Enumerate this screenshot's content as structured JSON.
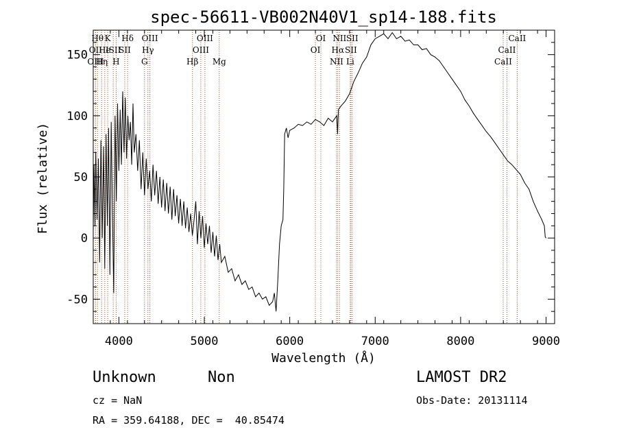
{
  "chart_data": {
    "type": "line",
    "title": "spec-56611-VB002N40V1_sp14-188.fits",
    "xlabel": "Wavelength (Å)",
    "ylabel": "Flux (relative)",
    "xlim": [
      3700,
      9100
    ],
    "ylim": [
      -70,
      170
    ],
    "x_ticks": [
      4000,
      5000,
      6000,
      7000,
      8000,
      9000
    ],
    "y_ticks": [
      -50,
      0,
      50,
      100,
      150
    ],
    "grid": false,
    "line_color": "#000000",
    "marker_color": "#a0522d",
    "series": [
      {
        "values": [
          [
            3700,
            5
          ],
          [
            3710,
            60
          ],
          [
            3720,
            10
          ],
          [
            3730,
            70
          ],
          [
            3745,
            15
          ],
          [
            3760,
            65
          ],
          [
            3775,
            -20
          ],
          [
            3790,
            80
          ],
          [
            3805,
            0
          ],
          [
            3820,
            75
          ],
          [
            3835,
            -25
          ],
          [
            3850,
            85
          ],
          [
            3865,
            10
          ],
          [
            3880,
            90
          ],
          [
            3895,
            -30
          ],
          [
            3910,
            95
          ],
          [
            3925,
            20
          ],
          [
            3940,
            -45
          ],
          [
            3955,
            100
          ],
          [
            3970,
            30
          ],
          [
            3985,
            110
          ],
          [
            4000,
            55
          ],
          [
            4015,
            105
          ],
          [
            4030,
            60
          ],
          [
            4045,
            120
          ],
          [
            4060,
            70
          ],
          [
            4075,
            115
          ],
          [
            4090,
            65
          ],
          [
            4105,
            100
          ],
          [
            4120,
            80
          ],
          [
            4135,
            95
          ],
          [
            4150,
            60
          ],
          [
            4165,
            110
          ],
          [
            4180,
            70
          ],
          [
            4200,
            85
          ],
          [
            4220,
            55
          ],
          [
            4240,
            80
          ],
          [
            4260,
            40
          ],
          [
            4280,
            70
          ],
          [
            4300,
            35
          ],
          [
            4320,
            65
          ],
          [
            4340,
            40
          ],
          [
            4360,
            55
          ],
          [
            4380,
            30
          ],
          [
            4400,
            60
          ],
          [
            4420,
            35
          ],
          [
            4440,
            55
          ],
          [
            4460,
            28
          ],
          [
            4480,
            50
          ],
          [
            4500,
            25
          ],
          [
            4520,
            48
          ],
          [
            4540,
            22
          ],
          [
            4560,
            45
          ],
          [
            4580,
            20
          ],
          [
            4600,
            42
          ],
          [
            4620,
            15
          ],
          [
            4640,
            40
          ],
          [
            4660,
            18
          ],
          [
            4680,
            35
          ],
          [
            4700,
            12
          ],
          [
            4720,
            32
          ],
          [
            4740,
            10
          ],
          [
            4760,
            30
          ],
          [
            4780,
            8
          ],
          [
            4800,
            25
          ],
          [
            4820,
            5
          ],
          [
            4840,
            20
          ],
          [
            4860,
            2
          ],
          [
            4880,
            15
          ],
          [
            4900,
            30
          ],
          [
            4920,
            -5
          ],
          [
            4940,
            22
          ],
          [
            4960,
            0
          ],
          [
            4980,
            18
          ],
          [
            5000,
            -8
          ],
          [
            5020,
            12
          ],
          [
            5040,
            -5
          ],
          [
            5060,
            10
          ],
          [
            5080,
            -12
          ],
          [
            5100,
            5
          ],
          [
            5120,
            -15
          ],
          [
            5140,
            2
          ],
          [
            5160,
            -18
          ],
          [
            5180,
            -5
          ],
          [
            5200,
            -20
          ],
          [
            5240,
            -15
          ],
          [
            5280,
            -28
          ],
          [
            5320,
            -25
          ],
          [
            5360,
            -35
          ],
          [
            5400,
            -30
          ],
          [
            5440,
            -38
          ],
          [
            5480,
            -35
          ],
          [
            5520,
            -42
          ],
          [
            5560,
            -40
          ],
          [
            5600,
            -48
          ],
          [
            5640,
            -45
          ],
          [
            5680,
            -50
          ],
          [
            5720,
            -48
          ],
          [
            5760,
            -55
          ],
          [
            5800,
            -52
          ],
          [
            5820,
            -45
          ],
          [
            5840,
            -60
          ],
          [
            5860,
            -35
          ],
          [
            5880,
            -5
          ],
          [
            5900,
            10
          ],
          [
            5920,
            15
          ],
          [
            5930,
            40
          ],
          [
            5940,
            85
          ],
          [
            5960,
            90
          ],
          [
            5980,
            82
          ],
          [
            6000,
            88
          ],
          [
            6050,
            90
          ],
          [
            6100,
            93
          ],
          [
            6150,
            92
          ],
          [
            6200,
            95
          ],
          [
            6250,
            93
          ],
          [
            6300,
            97
          ],
          [
            6350,
            95
          ],
          [
            6400,
            92
          ],
          [
            6450,
            98
          ],
          [
            6500,
            95
          ],
          [
            6550,
            100
          ],
          [
            6560,
            85
          ],
          [
            6570,
            105
          ],
          [
            6600,
            108
          ],
          [
            6650,
            112
          ],
          [
            6700,
            118
          ],
          [
            6750,
            128
          ],
          [
            6800,
            135
          ],
          [
            6850,
            143
          ],
          [
            6900,
            148
          ],
          [
            6950,
            158
          ],
          [
            7000,
            163
          ],
          [
            7050,
            165
          ],
          [
            7100,
            167
          ],
          [
            7150,
            163
          ],
          [
            7200,
            168
          ],
          [
            7250,
            163
          ],
          [
            7300,
            165
          ],
          [
            7350,
            161
          ],
          [
            7400,
            162
          ],
          [
            7450,
            158
          ],
          [
            7500,
            158
          ],
          [
            7550,
            154
          ],
          [
            7600,
            155
          ],
          [
            7650,
            150
          ],
          [
            7700,
            148
          ],
          [
            7750,
            145
          ],
          [
            7800,
            140
          ],
          [
            7850,
            135
          ],
          [
            7900,
            130
          ],
          [
            7950,
            125
          ],
          [
            8000,
            120
          ],
          [
            8050,
            113
          ],
          [
            8100,
            108
          ],
          [
            8150,
            102
          ],
          [
            8200,
            97
          ],
          [
            8250,
            92
          ],
          [
            8300,
            87
          ],
          [
            8350,
            83
          ],
          [
            8400,
            78
          ],
          [
            8450,
            73
          ],
          [
            8500,
            68
          ],
          [
            8550,
            63
          ],
          [
            8600,
            60
          ],
          [
            8650,
            56
          ],
          [
            8700,
            52
          ],
          [
            8750,
            45
          ],
          [
            8800,
            40
          ],
          [
            8850,
            30
          ],
          [
            8900,
            22
          ],
          [
            8950,
            15
          ],
          [
            8980,
            10
          ],
          [
            8990,
            1
          ],
          [
            9000,
            0
          ]
        ]
      }
    ],
    "lines": [
      {
        "wl": 3750,
        "label": "Hθ",
        "row": 0
      },
      {
        "wl": 3727,
        "label": "OII",
        "row": 1
      },
      {
        "wl": 3727,
        "label": "OIII",
        "row": 2
      },
      {
        "wl": 3798,
        "label": "Hη",
        "row": 2
      },
      {
        "wl": 3835,
        "label": "He",
        "row": 1
      },
      {
        "wl": 3869,
        "label": "K",
        "row": 0
      },
      {
        "wl": 3934,
        "label": "ISII",
        "row": 1
      },
      {
        "wl": 3968,
        "label": "H",
        "row": 2
      },
      {
        "wl": 4102,
        "label": "Hδ",
        "row": 0
      },
      {
        "wl": 4069,
        "label": "SII",
        "row": 1
      },
      {
        "wl": 4300,
        "label": "G",
        "row": 2
      },
      {
        "wl": 4340,
        "label": "Hγ",
        "row": 1
      },
      {
        "wl": 4363,
        "label": "OIII",
        "row": 0
      },
      {
        "wl": 4861,
        "label": "Hβ",
        "row": 2
      },
      {
        "wl": 4959,
        "label": "OIII",
        "row": 1
      },
      {
        "wl": 5007,
        "label": "OIII",
        "row": 0
      },
      {
        "wl": 5175,
        "label": "Mg",
        "row": 2
      },
      {
        "wl": 6300,
        "label": "OI",
        "row": 1
      },
      {
        "wl": 6364,
        "label": "OI",
        "row": 0
      },
      {
        "wl": 6548,
        "label": "NII",
        "row": 2
      },
      {
        "wl": 6563,
        "label": "Hα",
        "row": 1
      },
      {
        "wl": 6583,
        "label": "NII",
        "row": 0
      },
      {
        "wl": 6708,
        "label": "Li",
        "row": 2
      },
      {
        "wl": 6716,
        "label": "SII",
        "row": 1
      },
      {
        "wl": 6731,
        "label": "SII",
        "row": 0
      },
      {
        "wl": 8498,
        "label": "CaII",
        "row": 2
      },
      {
        "wl": 8542,
        "label": "CaII",
        "row": 1
      },
      {
        "wl": 8662,
        "label": "CaII",
        "row": 0
      }
    ]
  },
  "info": {
    "class": "Unknown",
    "subclass": "Non",
    "survey": "LAMOST DR2",
    "cz": "cz = NaN",
    "obs_date": "Obs-Date: 20131114",
    "radec": "RA = 359.64188, DEC =  40.85474"
  }
}
